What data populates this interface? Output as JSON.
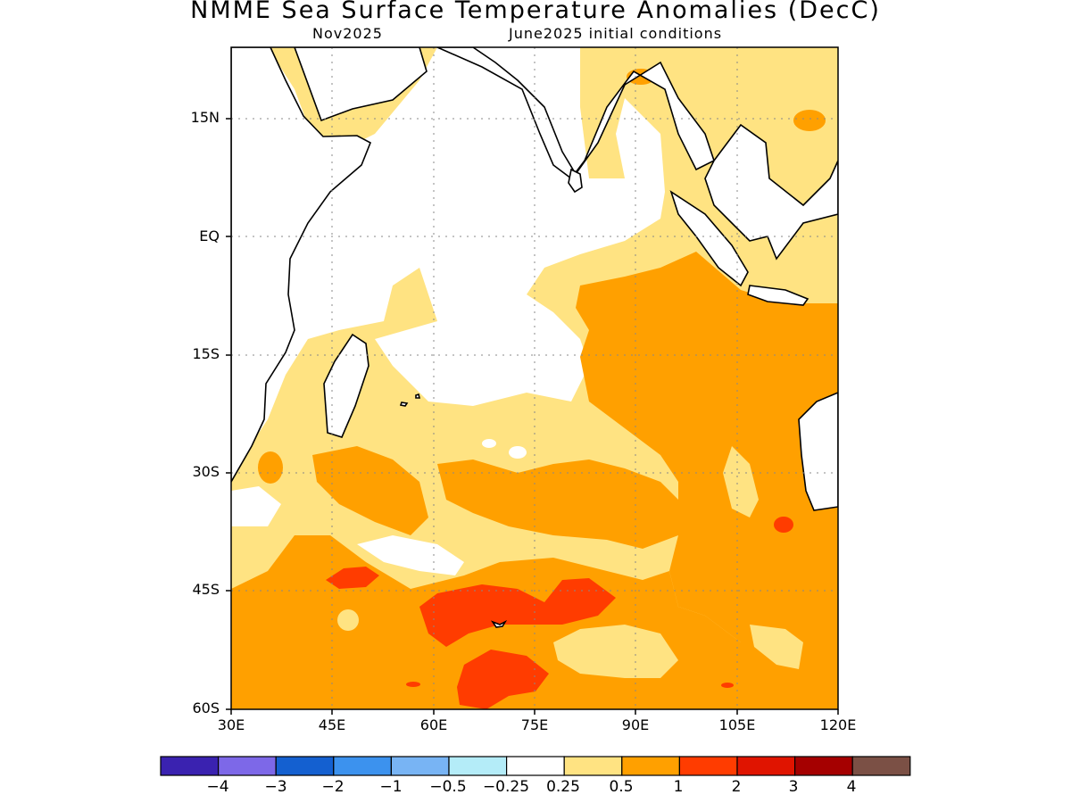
{
  "title": "NMME Sea Surface Temperature Anomalies (DecC)",
  "subtitle_left": "Nov2025",
  "subtitle_right": "June2025 initial conditions",
  "lat_labels": [
    "15N",
    "EQ",
    "15S",
    "30S",
    "45S",
    "60S"
  ],
  "lon_labels": [
    "30E",
    "45E",
    "60E",
    "75E",
    "90E",
    "105E",
    "120E"
  ],
  "colorbar": {
    "colors": [
      "#3a22b0",
      "#7d68e8",
      "#1460d0",
      "#3c92ee",
      "#78b4f4",
      "#b4ecf8",
      "#ffffff",
      "#ffe382",
      "#ffa000",
      "#ff3c00",
      "#e01400",
      "#a50000",
      "#7b5045"
    ],
    "labels": [
      "−4",
      "−3",
      "−2",
      "−1",
      "−0.5",
      "−0.25",
      "0.25",
      "0.5",
      "1",
      "2",
      "3",
      "4"
    ]
  }
}
